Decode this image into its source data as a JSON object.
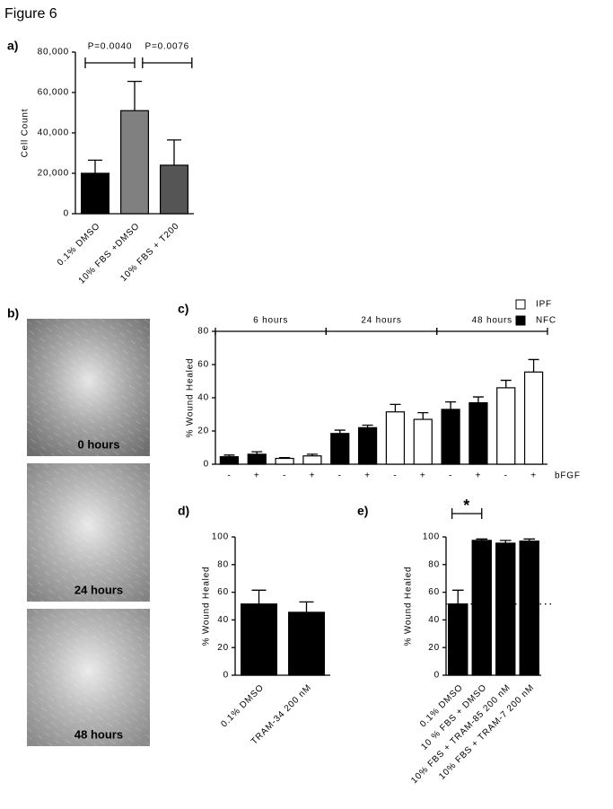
{
  "title": "Figure 6",
  "images": {
    "label": "b)",
    "captions": [
      "0 hours",
      "24 hours",
      "48 hours"
    ]
  },
  "chart_data": [
    {
      "type": "bar",
      "panel": "a)",
      "ylabel": "Cell Count",
      "categories": [
        "0.1% DMSO",
        "10% FBS +DMSO",
        "10% FBS + T200"
      ],
      "values": [
        20000,
        51000,
        24000
      ],
      "errors": [
        6500,
        14500,
        12500
      ],
      "colors": [
        "#000000",
        "#808080",
        "#555555"
      ],
      "ylim": [
        0,
        80000
      ],
      "yticks": [
        0,
        {
          "value": 20000,
          "label": "20,000"
        },
        {
          "value": 40000,
          "label": "40,000"
        },
        {
          "value": 60000,
          "label": "60,000"
        },
        {
          "value": 80000,
          "label": "80,000"
        }
      ],
      "comparisons": [
        {
          "label": "P=0.0040",
          "from": 0,
          "to": 1
        },
        {
          "label": "P=0.0076",
          "from": 1,
          "to": 2
        }
      ]
    },
    {
      "type": "bar",
      "panel": "c)",
      "ylabel": "% Wound Healed",
      "groups": [
        "6 hours",
        "24 hours",
        "48 hours"
      ],
      "categories": [
        "-",
        "+",
        "-",
        "+",
        "-",
        "+",
        "-",
        "+",
        "-",
        "+",
        "-",
        "+"
      ],
      "x_annotation": "bFGF",
      "series": [
        {
          "name": "IPF",
          "color": "#ffffff",
          "values": [
            null,
            null,
            3.5,
            5,
            null,
            null,
            31.5,
            27,
            null,
            null,
            46,
            55.5
          ],
          "errors": [
            null,
            null,
            0.5,
            1,
            null,
            null,
            4.5,
            4,
            null,
            null,
            4.5,
            7.5
          ]
        },
        {
          "name": "NFC",
          "color": "#000000",
          "values": [
            4.5,
            6,
            null,
            null,
            18.5,
            22,
            null,
            null,
            33,
            37,
            null,
            null
          ],
          "errors": [
            1,
            1.5,
            null,
            null,
            2,
            1.5,
            null,
            null,
            4.5,
            3.5,
            null,
            null
          ]
        }
      ],
      "ylim": [
        0,
        80
      ],
      "yticks": [
        0,
        20,
        40,
        60,
        80
      ],
      "legend": "top-right"
    },
    {
      "type": "bar",
      "panel": "d)",
      "ylabel": "% Wound Healed",
      "categories": [
        "0.1% DMSO",
        "TRAM-34 200 nM"
      ],
      "values": [
        51.5,
        45.5
      ],
      "errors": [
        10,
        7.5
      ],
      "color": "#000000",
      "ylim": [
        0,
        100
      ],
      "yticks": [
        0,
        20,
        40,
        60,
        80,
        100
      ]
    },
    {
      "type": "bar",
      "panel": "e)",
      "ylabel": "% Wound Healed",
      "categories": [
        "0.1% DMSO",
        "10 % FBS + DMSO",
        "10% FBS + TRAM-85 200 nM",
        "10% FBS + TRAM-7 200 nM"
      ],
      "values": [
        51.5,
        97.5,
        95.5,
        97
      ],
      "errors": [
        10,
        1,
        2,
        1.5
      ],
      "color": "#000000",
      "ylim": [
        0,
        100
      ],
      "yticks": [
        0,
        20,
        40,
        60,
        80,
        100
      ],
      "reference_line": 51.5,
      "comparisons": [
        {
          "label": "*",
          "from": 0,
          "to": 1
        }
      ]
    }
  ]
}
